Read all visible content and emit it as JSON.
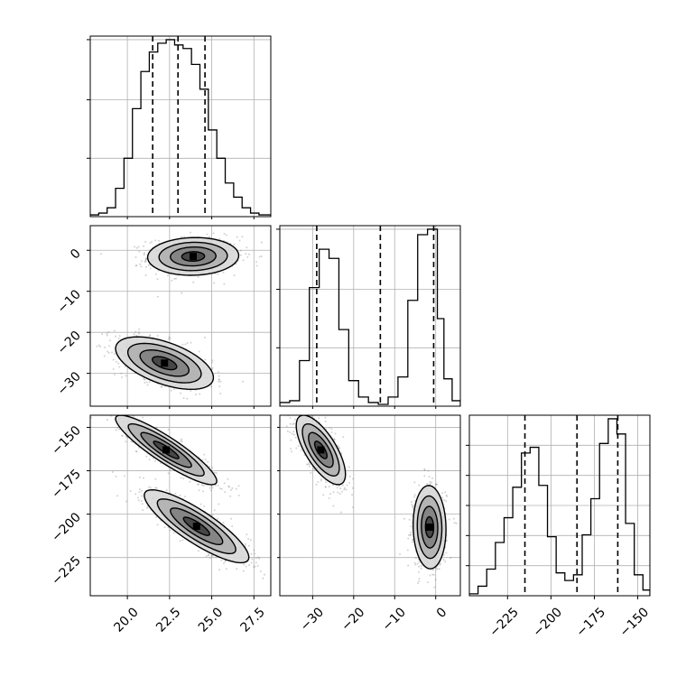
{
  "chart_data": {
    "type": "corner",
    "parameters": [
      {
        "range": [
          17.8,
          28.5
        ],
        "ticks": [
          20.0,
          22.5,
          25.0,
          27.5
        ],
        "tick_labels": [
          "20.0",
          "22.5",
          "25.0",
          "27.5"
        ],
        "quantiles": [
          21.5,
          23.0,
          24.6
        ],
        "hist_bins": [
          17.8,
          18.3,
          18.8,
          19.3,
          19.8,
          20.3,
          20.8,
          21.3,
          21.8,
          22.3,
          22.8,
          23.3,
          23.8,
          24.3,
          24.8,
          25.3,
          25.8,
          26.3,
          26.8,
          27.3,
          27.8,
          28.5
        ],
        "hist_counts": [
          1,
          2,
          5,
          16,
          33,
          61,
          82,
          93,
          98,
          100,
          97,
          95,
          86,
          72,
          49,
          33,
          19,
          11,
          5,
          2,
          1
        ]
      },
      {
        "range": [
          -38.0,
          6.0
        ],
        "ticks": [
          -30,
          -20,
          -10,
          0
        ],
        "tick_labels": [
          "−30",
          "−20",
          "−10",
          "0"
        ],
        "quantiles": [
          -29.0,
          -13.5,
          -0.5
        ],
        "hist_bins": [
          -38.0,
          -35.6,
          -33.2,
          -30.8,
          -28.4,
          -26.0,
          -23.6,
          -21.2,
          -18.8,
          -16.4,
          -14.0,
          -11.6,
          -9.2,
          -6.8,
          -4.4,
          -2.0,
          0.4,
          2.0,
          4.0,
          6.0
        ],
        "hist_counts": [
          2,
          3,
          25,
          65,
          86,
          81,
          42,
          14,
          5,
          2,
          1,
          5,
          16,
          58,
          94,
          97,
          48,
          15,
          3
        ],
        "tick_y_fractions": []
      },
      {
        "range": [
          -247.0,
          -143.0
        ],
        "ticks": [
          -225,
          -200,
          -175,
          -150
        ],
        "tick_labels": [
          "−225",
          "−200",
          "−175",
          "−150"
        ],
        "quantiles": [
          -215.0,
          -185.0,
          -161.5
        ],
        "hist_bins": [
          -247.0,
          -242.0,
          -237.0,
          -232.0,
          -227.0,
          -222.0,
          -217.0,
          -212.0,
          -207.0,
          -202.0,
          -197.0,
          -192.0,
          -187.0,
          -182.0,
          -177.0,
          -172.0,
          -167.0,
          -162.0,
          -157.0,
          -152.0,
          -147.0,
          -143.0
        ],
        "hist_counts": [
          1,
          5,
          14,
          28,
          41,
          57,
          75,
          78,
          58,
          31,
          12,
          8,
          11,
          32,
          51,
          80,
          93,
          85,
          38,
          11,
          3
        ]
      }
    ],
    "hist_y_ticks": {
      "param0": [
        33,
        66,
        100
      ],
      "param1": [
        33,
        66,
        100
      ],
      "param2": [
        17,
        34,
        51,
        68,
        85
      ]
    },
    "pairs": [
      {
        "x_param": 0,
        "y_param": 1,
        "modes": [
          {
            "mean": [
              23.9,
              -1.5
            ],
            "sd": [
              1.35,
              2.3
            ],
            "rho": 0.05,
            "weight": 0.52
          },
          {
            "mean": [
              22.2,
              -27.5
            ],
            "sd": [
              1.45,
              3.2
            ],
            "rho": -0.55,
            "weight": 0.48
          }
        ]
      },
      {
        "x_param": 0,
        "y_param": 2,
        "modes": [
          {
            "mean": [
              22.3,
              -163.0
            ],
            "sd": [
              1.5,
              10.0
            ],
            "rho": -0.9,
            "weight": 0.5
          },
          {
            "mean": [
              24.1,
              -207.0
            ],
            "sd": [
              1.55,
              10.5
            ],
            "rho": -0.85,
            "weight": 0.5
          }
        ]
      },
      {
        "x_param": 1,
        "y_param": 2,
        "modes": [
          {
            "mean": [
              -28.0,
              -163.0
            ],
            "sd": [
              3.0,
              10.0
            ],
            "rho": -0.7,
            "weight": 0.5
          },
          {
            "mean": [
              -1.5,
              -207.5
            ],
            "sd": [
              2.0,
              12.0
            ],
            "rho": -0.05,
            "weight": 0.5
          }
        ]
      }
    ],
    "grid": true,
    "contour_levels_sigma": [
      0.5,
      1.0,
      1.5,
      2.0
    ],
    "colors": {
      "line": "#000000",
      "quantile": "#000000",
      "grid": "#b0b0b0",
      "density": "#000000",
      "points": "#7f7f7f"
    }
  }
}
